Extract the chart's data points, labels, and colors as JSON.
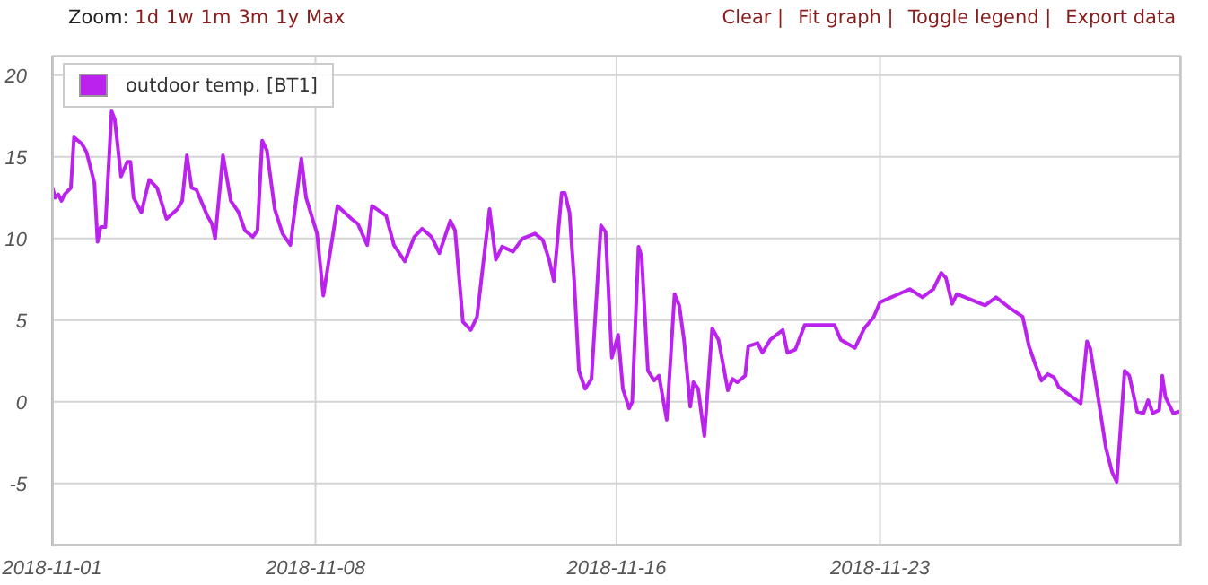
{
  "chart_data": {
    "type": "line",
    "annotations": [
      "Zoom:",
      "1d",
      "1w",
      "1m",
      "3m",
      "1y",
      "Max",
      "Clear |",
      "Fit graph |",
      "Toggle legend |",
      "Export data"
    ],
    "x": [
      "2018-11-01T00:00",
      "2018-11-01T02:00",
      "2018-11-01T04:00",
      "2018-11-01T06:00",
      "2018-11-01T08:00",
      "2018-11-01T12:00",
      "2018-11-01T14:00",
      "2018-11-01T19:00",
      "2018-11-01T22:00",
      "2018-11-02T03:00",
      "2018-11-02T05:00",
      "2018-11-02T07:00",
      "2018-11-02T10:00",
      "2018-11-02T14:00",
      "2018-11-02T16:00",
      "2018-11-02T20:00",
      "2018-11-03T00:00",
      "2018-11-03T02:00",
      "2018-11-03T04:00",
      "2018-11-03T09:00",
      "2018-11-03T14:00",
      "2018-11-03T19:00",
      "2018-11-04T01:00",
      "2018-11-04T08:00",
      "2018-11-04T11:00",
      "2018-11-04T14:00",
      "2018-11-04T17:00",
      "2018-11-04T20:00",
      "2018-11-05T03:00",
      "2018-11-05T06:00",
      "2018-11-05T08:00",
      "2018-11-05T13:00",
      "2018-11-05T18:00",
      "2018-11-05T23:00",
      "2018-11-06T03:00",
      "2018-11-06T08:00",
      "2018-11-06T11:00",
      "2018-11-06T14:00",
      "2018-11-06T17:00",
      "2018-11-06T22:00",
      "2018-11-07T03:00",
      "2018-11-07T08:00",
      "2018-11-07T15:00",
      "2018-11-07T18:00",
      "2018-11-08T01:00",
      "2018-11-08T05:00",
      "2018-11-08T14:00",
      "2018-11-08T23:00",
      "2018-11-09T03:00",
      "2018-11-09T09:00",
      "2018-11-09T12:00",
      "2018-11-09T21:00",
      "2018-11-10T02:00",
      "2018-11-10T09:00",
      "2018-11-10T15:00",
      "2018-11-10T20:00",
      "2018-11-11T02:00",
      "2018-11-11T07:00",
      "2018-11-11T14:00",
      "2018-11-11T17:00",
      "2018-11-11T22:00",
      "2018-11-12T03:00",
      "2018-11-12T07:00",
      "2018-11-12T15:00",
      "2018-11-12T19:00",
      "2018-11-12T23:00",
      "2018-11-13T06:00",
      "2018-11-13T12:00",
      "2018-11-13T20:00",
      "2018-11-14T01:00",
      "2018-11-14T05:00",
      "2018-11-14T08:00",
      "2018-11-14T13:00",
      "2018-11-14T15:00",
      "2018-11-14T18:00",
      "2018-11-14T21:00",
      "2018-11-15T00:00",
      "2018-11-15T04:00",
      "2018-11-15T08:00",
      "2018-11-15T14:00",
      "2018-11-15T17:00",
      "2018-11-15T21:00",
      "2018-11-16T01:00",
      "2018-11-16T04:00",
      "2018-11-16T08:00",
      "2018-11-16T10:00",
      "2018-11-16T14:00",
      "2018-11-16T16:00",
      "2018-11-16T20:00",
      "2018-11-17T00:00",
      "2018-11-17T03:00",
      "2018-11-17T08:00",
      "2018-11-17T13:00",
      "2018-11-17T16:00",
      "2018-11-17T19:00",
      "2018-11-17T23:00",
      "2018-11-18T01:00",
      "2018-11-18T04:00",
      "2018-11-18T08:00",
      "2018-11-18T13:00",
      "2018-11-18T17:00",
      "2018-11-18T23:00",
      "2018-11-19T02:00",
      "2018-11-19T05:00",
      "2018-11-19T10:00",
      "2018-11-19T12:00",
      "2018-11-19T18:00",
      "2018-11-19T21:00",
      "2018-11-20T02:00",
      "2018-11-20T10:00",
      "2018-11-20T13:00",
      "2018-11-20T18:00",
      "2018-11-21T00:00",
      "2018-11-21T19:00",
      "2018-11-21T23:00",
      "2018-11-22T08:00",
      "2018-11-22T14:00",
      "2018-11-22T20:00",
      "2018-11-23T00:00",
      "2018-11-23T19:00",
      "2018-11-24T03:00",
      "2018-11-24T10:00",
      "2018-11-24T15:00",
      "2018-11-24T18:00",
      "2018-11-24T22:00",
      "2018-11-25T01:00",
      "2018-11-25T19:00",
      "2018-11-26T02:00",
      "2018-11-26T10:00",
      "2018-11-26T19:00",
      "2018-11-26T23:00",
      "2018-11-27T03:00",
      "2018-11-27T07:00",
      "2018-11-27T11:00",
      "2018-11-27T15:00",
      "2018-11-27T18:00",
      "2018-11-28T08:00",
      "2018-11-28T12:00",
      "2018-11-28T14:00",
      "2018-11-28T20:00",
      "2018-11-29T00:00",
      "2018-11-29T04:00",
      "2018-11-29T07:00",
      "2018-11-29T12:00",
      "2018-11-29T15:00",
      "2018-11-29T20:00",
      "2018-11-30T00:00",
      "2018-11-30T03:00",
      "2018-11-30T06:00",
      "2018-11-30T10:00",
      "2018-11-30T12:00",
      "2018-11-30T14:00",
      "2018-11-30T19:00",
      "2018-11-30T23:00"
    ],
    "series": [
      {
        "name": "outdoor temp. [BT1]",
        "color": "#bb22ee",
        "values": [
          13.2,
          12.5,
          12.7,
          12.3,
          12.7,
          13.1,
          16.2,
          15.8,
          15.3,
          13.4,
          9.8,
          10.7,
          10.7,
          17.8,
          17.3,
          13.8,
          14.7,
          14.7,
          12.5,
          11.6,
          13.6,
          13.1,
          11.2,
          11.8,
          12.3,
          15.1,
          13.1,
          13.0,
          11.4,
          10.9,
          10.0,
          15.1,
          12.3,
          11.6,
          10.5,
          10.1,
          10.5,
          16.0,
          15.4,
          11.8,
          10.3,
          9.6,
          14.9,
          12.5,
          10.3,
          6.5,
          12.0,
          11.2,
          10.9,
          9.6,
          12.0,
          11.4,
          9.6,
          8.6,
          10.1,
          10.6,
          10.1,
          9.1,
          11.1,
          10.5,
          4.9,
          4.4,
          5.2,
          11.8,
          8.7,
          9.5,
          9.2,
          10.0,
          10.3,
          9.9,
          8.7,
          7.4,
          12.8,
          12.8,
          11.6,
          7.4,
          1.9,
          0.8,
          1.4,
          10.8,
          10.4,
          2.7,
          4.1,
          0.8,
          -0.4,
          0.0,
          9.5,
          8.9,
          1.9,
          1.3,
          1.6,
          -1.1,
          6.6,
          5.9,
          3.8,
          -0.3,
          1.2,
          0.8,
          -2.1,
          4.5,
          3.8,
          0.7,
          1.4,
          1.2,
          1.6,
          3.4,
          3.6,
          3.0,
          3.8,
          4.4,
          3.0,
          3.2,
          4.7,
          4.7,
          3.8,
          3.3,
          4.5,
          5.2,
          6.1,
          6.9,
          6.4,
          6.9,
          7.9,
          7.6,
          6.0,
          6.6,
          5.9,
          6.4,
          5.8,
          5.2,
          3.4,
          2.3,
          1.3,
          1.7,
          1.5,
          0.9,
          -0.1,
          3.7,
          3.3,
          -0.3,
          -2.8,
          -4.3,
          -4.9,
          1.9,
          1.6,
          -0.6,
          -0.7,
          0.1,
          -0.7,
          -0.5,
          1.6,
          0.3,
          -0.7,
          -0.6
        ]
      }
    ],
    "xlim": [
      "2018-11-01T00:00",
      "2018-12-01T00:00"
    ],
    "xticks": [
      "2018-11-01",
      "2018-11-08",
      "2018-11-16",
      "2018-11-23"
    ],
    "ylim": [
      -8.8,
      21.2
    ],
    "yticks": [
      -5,
      0,
      5,
      10,
      15,
      20
    ],
    "grid": true,
    "legend": "top left",
    "marker": "none",
    "line_style": "solid"
  }
}
